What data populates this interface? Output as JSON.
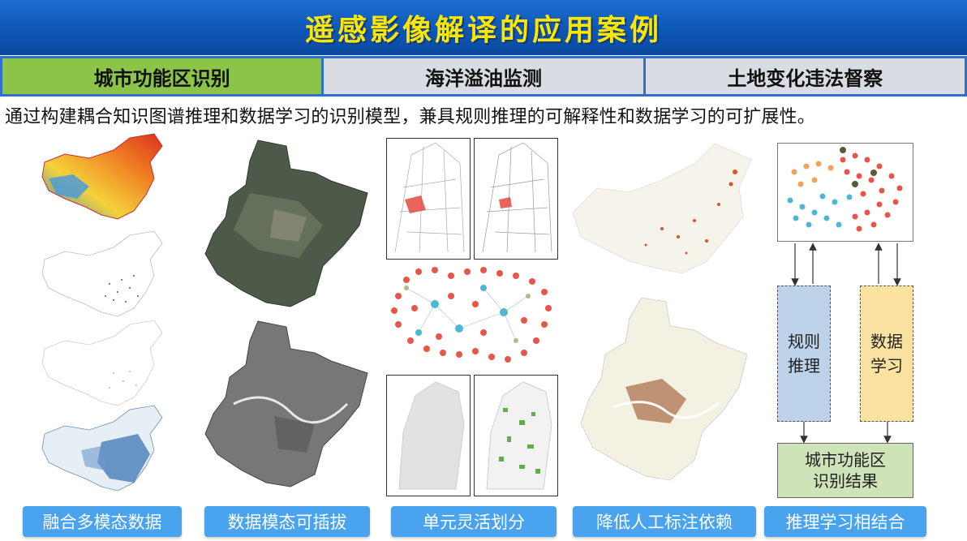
{
  "header": {
    "title": "遥感影像解译的应用案例"
  },
  "tabs": [
    {
      "label": "城市功能区识别",
      "active": true
    },
    {
      "label": "海洋溢油监测",
      "active": false
    },
    {
      "label": "土地变化违法督察",
      "active": false
    }
  ],
  "description": "通过构建耦合知识图谱推理和数据学习的识别模型，兼具规则推理的可解释性和数据学习的可扩展性。",
  "features": [
    {
      "label": "融合多模态数据"
    },
    {
      "label": "数据模态可插拔"
    },
    {
      "label": "单元灵活划分"
    },
    {
      "label": "降低人工标注依赖"
    },
    {
      "label": "推理学习相结合"
    }
  ],
  "flow": {
    "rule_reasoning": "规则\n推理",
    "data_learning": "数据\n学习",
    "result": "城市功能区\n识别结果"
  },
  "colors": {
    "header_bg": "#0d56b5",
    "title": "#ffe600",
    "active_tab": "#8cc44a",
    "tab_border": "#2f6fd0",
    "pill": "#4aa3ee",
    "rule_box": "#bcd3ea",
    "data_box": "#fbe2a0",
    "result_box": "#cfe3b8"
  }
}
